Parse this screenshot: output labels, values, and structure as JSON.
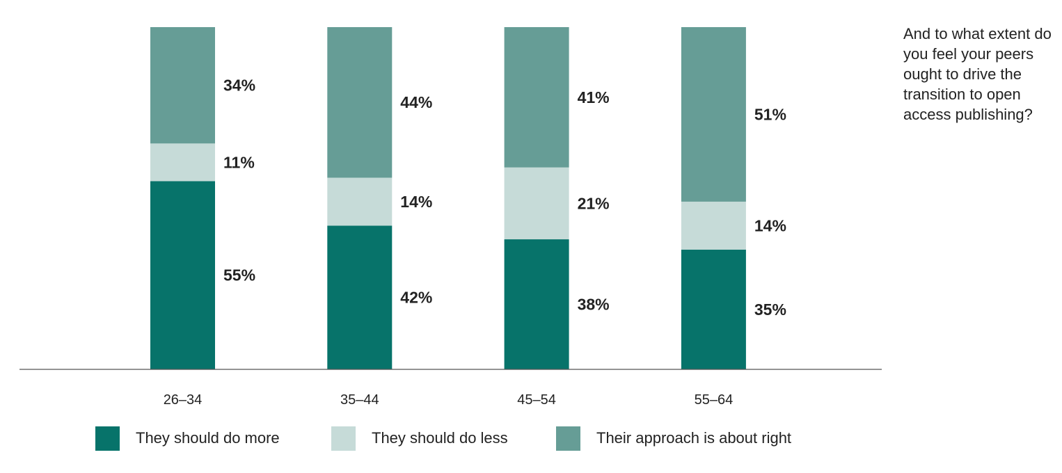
{
  "chart_data": {
    "type": "bar",
    "stacked": true,
    "orientation": "vertical",
    "categories": [
      "26–34",
      "35–44",
      "45–54",
      "55–64"
    ],
    "series": [
      {
        "name": "They should do more",
        "values": [
          55,
          42,
          38,
          35
        ],
        "color": "#07736a"
      },
      {
        "name": "They should do less",
        "values": [
          11,
          14,
          21,
          14
        ],
        "color": "#c6dbd8"
      },
      {
        "name": "Their approach is about right",
        "values": [
          34,
          44,
          41,
          51
        ],
        "color": "#669d96"
      }
    ],
    "value_suffix": "%",
    "ylim": [
      0,
      100
    ],
    "grid": false,
    "legend_position": "bottom",
    "annotation": "And to what extent do you feel your peers ought to drive the transition to open access publishing?"
  },
  "legend": {
    "items": [
      {
        "label": "They should do more",
        "color": "#07736a"
      },
      {
        "label": "They should do less",
        "color": "#c6dbd8"
      },
      {
        "label": "Their approach is about right",
        "color": "#669d96"
      }
    ]
  }
}
